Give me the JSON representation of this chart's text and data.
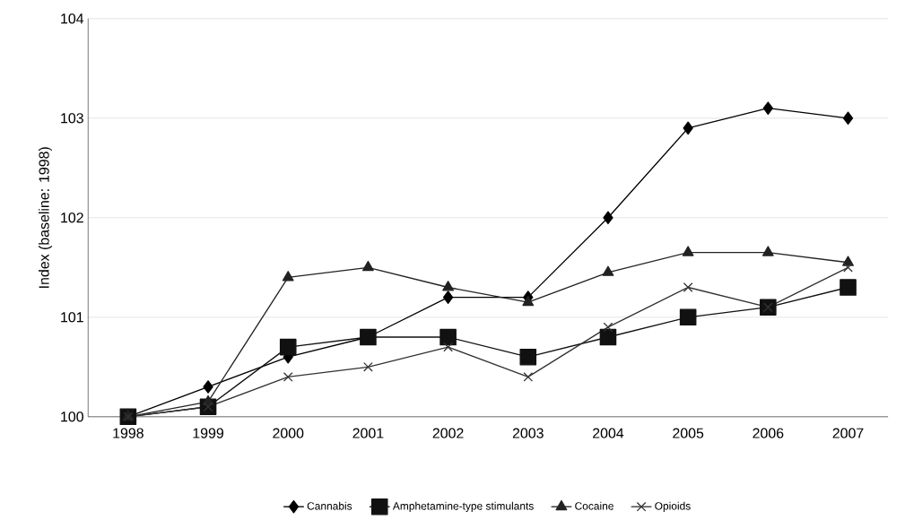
{
  "chart_data": {
    "type": "line",
    "ylabel": "Index (baseline: 1998)",
    "categories": [
      "1998",
      "1999",
      "2000",
      "2001",
      "2002",
      "2003",
      "2004",
      "2005",
      "2006",
      "2007"
    ],
    "series": [
      {
        "name": "Cannabis",
        "color": "#000000",
        "marker": "diamond",
        "values": [
          100,
          100.3,
          100.6,
          100.8,
          101.2,
          101.2,
          102,
          102.9,
          103.1,
          103.0
        ]
      },
      {
        "name": "Amphetamine-type stimulants",
        "color": "#111111",
        "marker": "square",
        "values": [
          100,
          100.1,
          100.7,
          100.8,
          100.8,
          100.6,
          100.8,
          101.0,
          101.1,
          101.3
        ]
      },
      {
        "name": "Cocaine",
        "color": "#222222",
        "marker": "triangle",
        "values": [
          100,
          100.15,
          101.4,
          101.5,
          101.3,
          101.15,
          101.45,
          101.65,
          101.65,
          101.55
        ]
      },
      {
        "name": "Opioids",
        "color": "#333333",
        "marker": "cross",
        "values": [
          100,
          100.1,
          100.4,
          100.5,
          100.7,
          100.4,
          100.9,
          101.3,
          101.1,
          101.5
        ]
      }
    ],
    "ylim": [
      100,
      104
    ],
    "yticks": [
      100,
      101,
      102,
      103,
      104
    ],
    "grid": "y",
    "legend": "bottom",
    "line_style": "solid"
  }
}
